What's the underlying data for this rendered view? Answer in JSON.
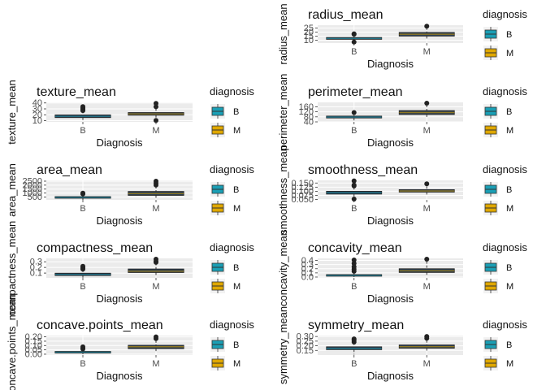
{
  "legend": {
    "title": "diagnosis",
    "items": [
      {
        "label": "B",
        "color": "#1a9fb5"
      },
      {
        "label": "M",
        "color": "#e0a800"
      }
    ]
  },
  "chart_data": [
    {
      "type": "boxplot",
      "title": "radius_mean",
      "xlabel": "Diagnosis",
      "ylabel": "radius_mean",
      "categories": [
        "B",
        "M"
      ],
      "yticks": [
        "10",
        "15",
        "20",
        "25"
      ],
      "ytick_values": [
        10,
        15,
        20,
        25
      ],
      "ylim": [
        6.5,
        28.5
      ],
      "boxes": [
        {
          "name": "B",
          "whisker_low": 8,
          "q1": 11.1,
          "median": 12.2,
          "q3": 13.4,
          "whisker_high": 16.8,
          "outliers": [
            7.7,
            17.9,
            17.4
          ]
        },
        {
          "name": "M",
          "whisker_low": 11,
          "q1": 15.1,
          "median": 17.3,
          "q3": 19.6,
          "whisker_high": 25.7,
          "outliers": [
            27.2
          ]
        }
      ]
    },
    {
      "type": "boxplot",
      "title": "texture_mean",
      "xlabel": "Diagnosis",
      "ylabel": "texture_mean",
      "categories": [
        "B",
        "M"
      ],
      "yticks": [
        "10",
        "20",
        "30",
        "40"
      ],
      "ytick_values": [
        10,
        20,
        30,
        40
      ],
      "ylim": [
        8,
        41
      ],
      "boxes": [
        {
          "name": "B",
          "whisker_low": 9.7,
          "q1": 15.2,
          "median": 17.4,
          "q3": 19.8,
          "whisker_high": 26.6,
          "outliers": [
            27.1,
            28.2,
            29.3,
            30.7,
            32.0,
            33.8
          ]
        },
        {
          "name": "M",
          "whisker_low": 14.4,
          "q1": 19.3,
          "median": 21.5,
          "q3": 23.8,
          "whisker_high": 30.6,
          "outliers": [
            10.4,
            33.6,
            39.3
          ]
        }
      ]
    },
    {
      "type": "boxplot",
      "title": "perimeter_mean",
      "xlabel": "Diagnosis",
      "ylabel": "perimeter_mean",
      "categories": [
        "B",
        "M"
      ],
      "yticks": [
        "40",
        "80",
        "120",
        "160"
      ],
      "ytick_values": [
        40,
        80,
        120,
        160
      ],
      "ylim": [
        40,
        195
      ],
      "boxes": [
        {
          "name": "B",
          "whisker_low": 43.8,
          "q1": 70.9,
          "median": 78.2,
          "q3": 86.1,
          "whisker_high": 108.4,
          "outliers": [
            114.6
          ]
        },
        {
          "name": "M",
          "whisker_low": 71.9,
          "q1": 98.7,
          "median": 114.2,
          "q3": 129.9,
          "whisker_high": 176.0,
          "outliers": [
            188.5
          ]
        }
      ]
    },
    {
      "type": "boxplot",
      "title": "area_mean",
      "xlabel": "Diagnosis",
      "ylabel": "area_mean",
      "categories": [
        "B",
        "M"
      ],
      "yticks": [
        "500",
        "1000",
        "1500",
        "2000",
        "2500"
      ],
      "ytick_values": [
        500,
        1000,
        1500,
        2000,
        2500
      ],
      "ylim": [
        140,
        2600
      ],
      "boxes": [
        {
          "name": "B",
          "whisker_low": 143.5,
          "q1": 378.2,
          "median": 458.4,
          "q3": 551.1,
          "whisker_high": 800,
          "outliers": [
            890,
            940,
            992
          ]
        },
        {
          "name": "M",
          "whisker_low": 361.6,
          "q1": 705.3,
          "median": 932.0,
          "q3": 1203.8,
          "whisker_high": 1878,
          "outliers": [
            2010,
            2250,
            2501
          ]
        }
      ]
    },
    {
      "type": "boxplot",
      "title": "smoothness_mean",
      "xlabel": "Diagnosis",
      "ylabel": "smoothness_mean",
      "categories": [
        "B",
        "M"
      ],
      "yticks": [
        "0.050",
        "0.075",
        "0.100",
        "0.125",
        "0.150"
      ],
      "ytick_values": [
        0.05,
        0.075,
        0.1,
        0.125,
        0.15
      ],
      "ylim": [
        0.048,
        0.166
      ],
      "boxes": [
        {
          "name": "B",
          "whisker_low": 0.064,
          "q1": 0.083,
          "median": 0.091,
          "q3": 0.1,
          "whisker_high": 0.125,
          "outliers": [
            0.053,
            0.132,
            0.138,
            0.163
          ]
        },
        {
          "name": "M",
          "whisker_low": 0.074,
          "q1": 0.095,
          "median": 0.102,
          "q3": 0.11,
          "whisker_high": 0.13,
          "outliers": [
            0.145
          ]
        }
      ]
    },
    {
      "type": "boxplot",
      "title": "compactness_mean",
      "xlabel": "Diagnosis",
      "ylabel": "compactness_mean",
      "categories": [
        "B",
        "M"
      ],
      "yticks": [
        "0.1",
        "0.2",
        "0.3"
      ],
      "ytick_values": [
        0.1,
        0.2,
        0.3
      ],
      "ylim": [
        0.015,
        0.36
      ],
      "boxes": [
        {
          "name": "B",
          "whisker_low": 0.019,
          "q1": 0.056,
          "median": 0.075,
          "q3": 0.098,
          "whisker_high": 0.16,
          "outliers": [
            0.17,
            0.18,
            0.2,
            0.22
          ]
        },
        {
          "name": "M",
          "whisker_low": 0.046,
          "q1": 0.109,
          "median": 0.132,
          "q3": 0.172,
          "whisker_high": 0.28,
          "outliers": [
            0.29,
            0.31,
            0.345
          ]
        }
      ]
    },
    {
      "type": "boxplot",
      "title": "concavity_mean",
      "xlabel": "Diagnosis",
      "ylabel": "concavity_mean",
      "categories": [
        "B",
        "M"
      ],
      "yticks": [
        "0.0",
        "0.1",
        "0.2",
        "0.3",
        "0.4"
      ],
      "ytick_values": [
        0,
        0.1,
        0.2,
        0.3,
        0.4
      ],
      "ylim": [
        -0.02,
        0.45
      ],
      "boxes": [
        {
          "name": "B",
          "whisker_low": 0,
          "q1": 0.02,
          "median": 0.037,
          "q3": 0.059,
          "whisker_high": 0.12,
          "outliers": [
            0.14,
            0.19,
            0.25,
            0.33,
            0.41
          ]
        },
        {
          "name": "M",
          "whisker_low": 0.024,
          "q1": 0.11,
          "median": 0.15,
          "q3": 0.2,
          "whisker_high": 0.38,
          "outliers": [
            0.43
          ]
        }
      ]
    },
    {
      "type": "boxplot",
      "title": "concave.points_mean",
      "xlabel": "Diagnosis",
      "ylabel": "concave.points_mean",
      "categories": [
        "B",
        "M"
      ],
      "yticks": [
        "0.00",
        "0.05",
        "0.10",
        "0.15",
        "0.20"
      ],
      "ytick_values": [
        0,
        0.05,
        0.1,
        0.15,
        0.2
      ],
      "ylim": [
        -0.01,
        0.215
      ],
      "boxes": [
        {
          "name": "B",
          "whisker_low": 0,
          "q1": 0.015,
          "median": 0.023,
          "q3": 0.032,
          "whisker_high": 0.058,
          "outliers": [
            0.06,
            0.07,
            0.085
          ]
        },
        {
          "name": "M",
          "whisker_low": 0.02,
          "q1": 0.064,
          "median": 0.086,
          "q3": 0.103,
          "whisker_high": 0.16,
          "outliers": [
            0.18,
            0.2
          ]
        }
      ]
    },
    {
      "type": "boxplot",
      "title": "symmetry_mean",
      "xlabel": "Diagnosis",
      "ylabel": "symmetry_mean",
      "categories": [
        "B",
        "M"
      ],
      "yticks": [
        "0.15",
        "0.20",
        "0.25",
        "0.30"
      ],
      "ytick_values": [
        0.15,
        0.2,
        0.25,
        0.3
      ],
      "ylim": [
        0.1,
        0.31
      ],
      "boxes": [
        {
          "name": "B",
          "whisker_low": 0.106,
          "q1": 0.158,
          "median": 0.171,
          "q3": 0.189,
          "whisker_high": 0.235,
          "outliers": [
            0.24,
            0.26,
            0.274
          ]
        },
        {
          "name": "M",
          "whisker_low": 0.131,
          "q1": 0.174,
          "median": 0.19,
          "q3": 0.209,
          "whisker_high": 0.26,
          "outliers": [
            0.28,
            0.3
          ]
        }
      ]
    }
  ]
}
